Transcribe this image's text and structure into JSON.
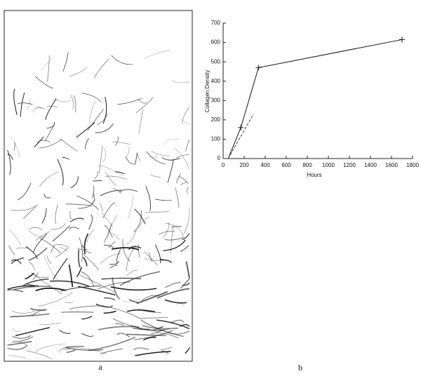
{
  "figure": {
    "labels": [
      "a",
      "b"
    ]
  },
  "chart_data": {
    "type": "line",
    "x_label": "Hours",
    "y_label": "Collagen Density",
    "xlim": [
      0,
      1800
    ],
    "xticks": [
      0,
      200,
      400,
      600,
      800,
      1000,
      1200,
      1400,
      1600,
      1800
    ],
    "ylim": [
      0,
      700
    ],
    "yticks": [
      0,
      100,
      200,
      300,
      400,
      500,
      600,
      700
    ],
    "series": [
      {
        "color": "#111111",
        "dash": false,
        "markers": true,
        "x": [
          48,
          168,
          336,
          1700
        ],
        "values": [
          0,
          160,
          470,
          615
        ]
      },
      {
        "color": "#444444",
        "dash": true,
        "markers": false,
        "x": [
          48,
          288
        ],
        "values": [
          0,
          230
        ]
      }
    ]
  }
}
